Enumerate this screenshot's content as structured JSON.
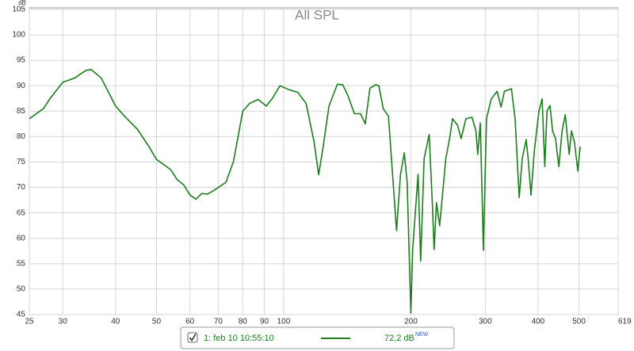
{
  "chart_data": {
    "type": "line",
    "title": "All SPL",
    "y_unit": "dB",
    "log_x": true,
    "grid": true,
    "xlim": [
      25,
      619
    ],
    "ylim": [
      45,
      105.3
    ],
    "xticks": [
      25,
      30,
      40,
      50,
      60,
      70,
      80,
      90,
      100,
      200,
      300,
      400,
      500,
      {
        "value": 619,
        "label": "619 Hz"
      }
    ],
    "yticks": [
      45,
      50,
      55,
      60,
      65,
      70,
      75,
      80,
      85,
      90,
      95,
      100,
      105
    ],
    "x": [
      25,
      27,
      28,
      30,
      32,
      34,
      35,
      37,
      40,
      42,
      45,
      48,
      50,
      52,
      54,
      56,
      58,
      60,
      62,
      64,
      66,
      68,
      70,
      73,
      76,
      78,
      80,
      83,
      87,
      91,
      94,
      98,
      103,
      108,
      113,
      118,
      121,
      124,
      128,
      134,
      138,
      142,
      147,
      152,
      156,
      160,
      165,
      168,
      172,
      177,
      185,
      189,
      193,
      196,
      200,
      202,
      208,
      211,
      215,
      221,
      225,
      227,
      230,
      234,
      242,
      247,
      251,
      258,
      263,
      270,
      279,
      285,
      288,
      292,
      297,
      302,
      310,
      320,
      327,
      333,
      346,
      353,
      361,
      367,
      375,
      379,
      385,
      392,
      402,
      409,
      415,
      420,
      427,
      433,
      440,
      448,
      456,
      464,
      474,
      480,
      488,
      497,
      503
    ],
    "series": [
      {
        "name": "1: feb 10 10:55:10",
        "color": "#1a7f1a",
        "values": [
          83.5,
          85.5,
          87.5,
          90.7,
          91.5,
          93,
          93.2,
          91.5,
          86,
          84,
          81.5,
          78,
          75.5,
          74.5,
          73.5,
          71.5,
          70.5,
          68.5,
          67.7,
          68.8,
          68.7,
          69.3,
          70,
          71,
          75,
          80,
          85,
          86.5,
          87.3,
          86,
          87.5,
          90,
          89.2,
          88.7,
          86.5,
          79,
          72.5,
          78,
          86,
          90.3,
          90.2,
          88,
          84.5,
          84.5,
          82.5,
          89.5,
          90.2,
          90,
          85.5,
          84,
          61.5,
          72.5,
          76.8,
          71,
          45.3,
          57.8,
          72.6,
          55.5,
          75.7,
          80.4,
          66.3,
          57.8,
          67,
          62.5,
          75.7,
          79.6,
          83.5,
          82.2,
          79.6,
          83.5,
          83.8,
          81.2,
          76.5,
          82.7,
          57.6,
          83.5,
          87.4,
          88.9,
          85.8,
          88.9,
          89.4,
          83.5,
          68,
          75.7,
          79.4,
          75.7,
          68.5,
          77.2,
          85,
          87.4,
          74.1,
          85,
          86.1,
          81.1,
          79.6,
          74.1,
          81.1,
          84.3,
          76.5,
          81.1,
          78.8,
          73.2,
          78
        ]
      }
    ],
    "legend_value": "72,2 dB",
    "legend_badge": "NEW"
  }
}
